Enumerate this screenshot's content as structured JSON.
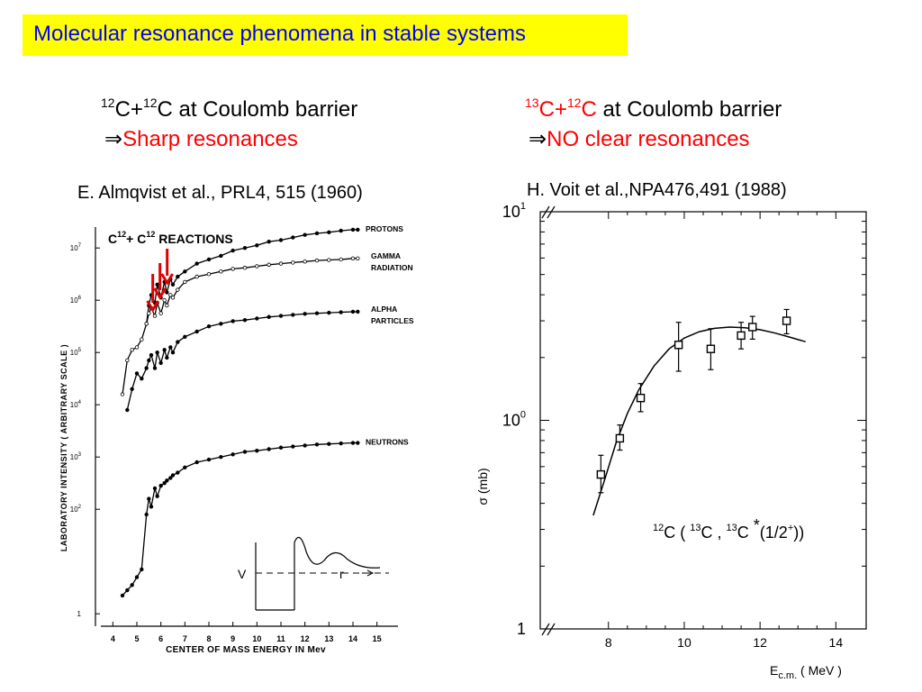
{
  "slide": {
    "title": "Molecular resonance phenomena in stable systems"
  },
  "left_caption": {
    "sup1": "12",
    "c_plus": "C+",
    "sup2": "12",
    "rest": "C at Coulomb barrier",
    "arrow": "⇒",
    "conclusion": "Sharp resonances"
  },
  "right_caption": {
    "sup1": "13",
    "c_plus": "C+",
    "sup2": "12",
    "c_red": "C",
    "rest": " at Coulomb barrier",
    "arrow": "⇒",
    "conclusion": "NO clear resonances"
  },
  "left_reference": "E. Almqvist et al., PRL4, 515 (1960)",
  "right_reference": "H. Voit et al.,NPA476,491 (1988)",
  "colors": {
    "title_bg": "#ffff00",
    "title_text": "#0000ff",
    "highlight": "#ff0000",
    "arrow": "#e00000"
  },
  "chart_data": [
    {
      "type": "line",
      "title_parts": {
        "a": "C",
        "sup1": "12",
        "plus": "+ C",
        "sup2": "12",
        "rest": " REACTIONS"
      },
      "xlabel": "CENTER OF MASS ENERGY IN Mev",
      "ylabel": "LABORATORY INTENSITY ( ARBITRARY SCALE )",
      "xlim": [
        3.5,
        15.5
      ],
      "x_ticks": [
        "4",
        "5",
        "6",
        "7",
        "8",
        "9",
        "10",
        "11",
        "12",
        "13",
        "14",
        "15"
      ],
      "y_scale": "log",
      "y_ticks": [
        {
          "base": "10",
          "exp": "7"
        },
        {
          "base": "10",
          "exp": "6"
        },
        {
          "base": "10",
          "exp": "5"
        },
        {
          "base": "10",
          "exp": "4"
        },
        {
          "base": "10",
          "exp": "3"
        },
        {
          "base": "10",
          "exp": "2"
        },
        {
          "base": "1",
          "exp": ""
        }
      ],
      "ylim_log10": [
        -0.1,
        7.4
      ],
      "series": [
        {
          "name": "PROTONS",
          "x": [
            4.4,
            4.6,
            4.8,
            5.0,
            5.2,
            5.4,
            5.5,
            5.6,
            5.75,
            5.85,
            6.0,
            6.15,
            6.25,
            6.4,
            6.5,
            6.7,
            7.0,
            7.5,
            8.0,
            8.5,
            9.0,
            9.5,
            10.0,
            10.5,
            11.0,
            11.5,
            12.0,
            12.5,
            13.0,
            13.5,
            14.0,
            14.2
          ],
          "y_log10": [
            null,
            null,
            null,
            null,
            null,
            5.55,
            5.9,
            6.1,
            5.95,
            6.3,
            6.05,
            6.35,
            6.15,
            6.4,
            6.3,
            6.45,
            6.55,
            6.7,
            6.78,
            6.85,
            6.95,
            7.0,
            7.05,
            7.12,
            7.15,
            7.2,
            7.25,
            7.28,
            7.3,
            7.33,
            7.35,
            7.35
          ]
        },
        {
          "name": "GAMMA RADIATION",
          "x": [
            4.4,
            4.6,
            4.8,
            5.0,
            5.2,
            5.4,
            5.5,
            5.6,
            5.75,
            5.85,
            6.0,
            6.15,
            6.25,
            6.4,
            6.5,
            6.7,
            7.0,
            7.5,
            8.0,
            8.5,
            9.0,
            9.5,
            10.0,
            10.5,
            11.0,
            11.5,
            12.0,
            12.5,
            13.0,
            13.5,
            14.0,
            14.2
          ],
          "y_log10": [
            4.2,
            4.85,
            5.05,
            5.1,
            5.25,
            5.55,
            5.75,
            5.85,
            5.7,
            5.95,
            5.75,
            6.0,
            5.9,
            6.1,
            6.05,
            6.2,
            6.35,
            6.45,
            6.5,
            6.55,
            6.6,
            6.62,
            6.65,
            6.68,
            6.7,
            6.72,
            6.74,
            6.76,
            6.77,
            6.78,
            6.8,
            6.8
          ]
        },
        {
          "name": "ALPHA PARTICLES",
          "x": [
            4.4,
            4.6,
            4.8,
            5.0,
            5.2,
            5.4,
            5.5,
            5.6,
            5.75,
            5.85,
            6.0,
            6.15,
            6.25,
            6.4,
            6.5,
            6.7,
            7.0,
            7.5,
            8.0,
            8.5,
            9.0,
            9.5,
            10.0,
            10.5,
            11.0,
            11.5,
            12.0,
            12.5,
            13.0,
            13.5,
            14.0,
            14.2
          ],
          "y_log10": [
            null,
            3.9,
            4.3,
            4.6,
            4.5,
            4.7,
            4.85,
            4.95,
            4.7,
            5.0,
            4.8,
            5.05,
            4.9,
            5.1,
            5.0,
            5.2,
            5.3,
            5.4,
            5.5,
            5.55,
            5.6,
            5.62,
            5.65,
            5.68,
            5.7,
            5.72,
            5.74,
            5.75,
            5.76,
            5.77,
            5.78,
            5.78
          ]
        },
        {
          "name": "NEUTRONS",
          "x": [
            4.4,
            4.6,
            4.8,
            5.0,
            5.2,
            5.4,
            5.5,
            5.6,
            5.75,
            5.85,
            6.0,
            6.15,
            6.25,
            6.4,
            6.5,
            6.7,
            7.0,
            7.5,
            8.0,
            8.5,
            9.0,
            9.5,
            10.0,
            10.5,
            11.0,
            11.5,
            12.0,
            12.5,
            13.0,
            13.5,
            14.0,
            14.2
          ],
          "y_log10": [
            0.35,
            0.45,
            0.55,
            0.7,
            0.85,
            1.9,
            2.2,
            2.05,
            2.4,
            2.25,
            2.45,
            2.5,
            2.55,
            2.6,
            2.65,
            2.7,
            2.8,
            2.9,
            2.95,
            3.0,
            3.05,
            3.1,
            3.12,
            3.15,
            3.18,
            3.2,
            3.22,
            3.24,
            3.25,
            3.26,
            3.27,
            3.27
          ]
        }
      ],
      "inset": {
        "labels": [
          "V",
          "r"
        ]
      },
      "annotations": {
        "red_arrows_at_x": [
          5.55,
          5.85,
          6.15
        ]
      }
    },
    {
      "type": "scatter",
      "xlabel": {
        "main": "E",
        "sub": "c.m.",
        "unit": " ( MeV )"
      },
      "ylabel": "σ (mb)",
      "xlim": [
        6.2,
        14.8
      ],
      "x_ticks": [
        "8",
        "10",
        "12",
        "14"
      ],
      "y_scale": "log",
      "y_ticks": [
        {
          "base": "10",
          "exp": "1"
        },
        {
          "base": "10",
          "exp": "0"
        },
        {
          "base": "1",
          "exp": ""
        }
      ],
      "ylim": [
        0.1,
        10
      ],
      "reaction_label": {
        "s1": "12",
        "c1": "C ( ",
        "s2": "13",
        "c2": "C , ",
        "s3": "13",
        "c3": "C ",
        "star": "*",
        "tail": "(1/2",
        "plus": "+",
        "end": "))"
      },
      "points": {
        "x": [
          7.8,
          8.3,
          8.85,
          9.85,
          10.7,
          11.5,
          11.8,
          12.7
        ],
        "y": [
          0.55,
          0.82,
          1.28,
          2.3,
          2.2,
          2.55,
          2.8,
          3.0
        ],
        "err_low": [
          0.45,
          0.72,
          1.1,
          1.72,
          1.75,
          2.2,
          2.45,
          2.6
        ],
        "err_high": [
          0.68,
          0.95,
          1.5,
          2.95,
          2.75,
          2.95,
          3.15,
          3.4
        ]
      },
      "fit_curve": {
        "x": [
          7.6,
          7.9,
          8.2,
          8.5,
          8.8,
          9.2,
          9.6,
          10.0,
          10.4,
          10.8,
          11.2,
          11.6,
          12.0,
          12.4,
          12.8,
          13.2
        ],
        "y": [
          0.35,
          0.52,
          0.78,
          1.08,
          1.4,
          1.82,
          2.2,
          2.48,
          2.66,
          2.76,
          2.8,
          2.78,
          2.72,
          2.62,
          2.5,
          2.38
        ]
      }
    }
  ]
}
